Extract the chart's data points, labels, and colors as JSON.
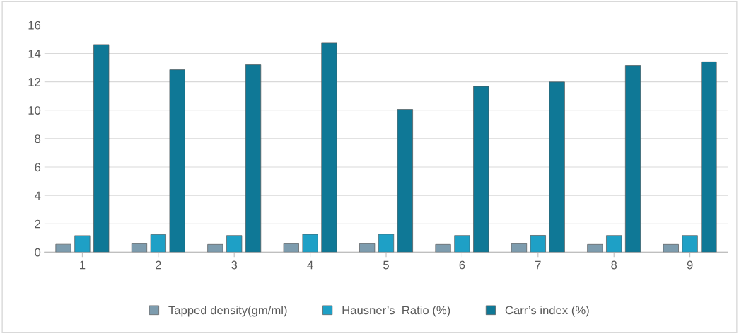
{
  "chart_data": {
    "type": "bar",
    "categories": [
      "1",
      "2",
      "3",
      "4",
      "5",
      "6",
      "7",
      "8",
      "9"
    ],
    "series": [
      {
        "name": "Tapped density(gm/ml)",
        "color": "#7d9cae",
        "values": [
          0.56,
          0.6,
          0.55,
          0.6,
          0.6,
          0.55,
          0.6,
          0.55,
          0.55
        ]
      },
      {
        "name": "Hausner’s  Ratio (%)",
        "color": "#1ea0c6",
        "values": [
          1.17,
          1.25,
          1.18,
          1.26,
          1.27,
          1.18,
          1.19,
          1.18,
          1.18
        ]
      },
      {
        "name": "Carr’s index (%)",
        "color": "#0f7896",
        "values": [
          14.63,
          12.85,
          13.2,
          14.73,
          10.06,
          11.68,
          11.99,
          13.15,
          13.41
        ]
      }
    ],
    "ylim": [
      0,
      16
    ],
    "yticks": [
      0,
      2,
      4,
      6,
      8,
      10,
      12,
      14,
      16
    ],
    "grid": "y",
    "legend": "bottom"
  }
}
